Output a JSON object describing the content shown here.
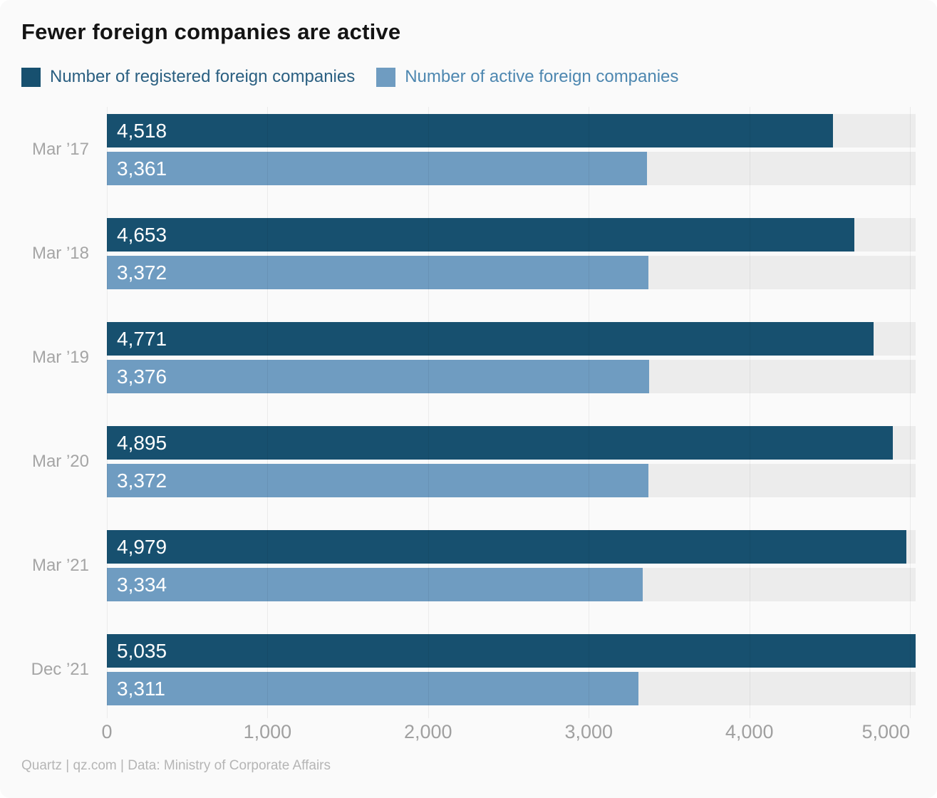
{
  "title": "Fewer foreign companies are active",
  "legend": {
    "items": [
      {
        "label": "Number of registered foreign companies",
        "swatch_color": "#17506f",
        "text_color": "#2a5f81"
      },
      {
        "label": "Number of active foreign companies",
        "swatch_color": "#6f9cc1",
        "text_color": "#4d87b0"
      }
    ]
  },
  "footer": "Quartz | qz.com | Data: Ministry of Corporate Affairs",
  "chart_data": {
    "type": "bar",
    "orientation": "horizontal",
    "title": "Fewer foreign companies are active",
    "categories": [
      "Mar ’17",
      "Mar ’18",
      "Mar ’19",
      "Mar ’20",
      "Mar ’21",
      "Dec ’21"
    ],
    "series": [
      {
        "name": "Number of registered foreign companies",
        "color": "#17506f",
        "values": [
          4518,
          4653,
          4771,
          4895,
          4979,
          5035
        ],
        "labels": [
          "4,518",
          "4,653",
          "4,771",
          "4,895",
          "4,979",
          "5,035"
        ]
      },
      {
        "name": "Number of active foreign companies",
        "color": "#6f9cc1",
        "values": [
          3361,
          3372,
          3376,
          3372,
          3334,
          3311
        ],
        "labels": [
          "3,361",
          "3,372",
          "3,376",
          "3,372",
          "3,334",
          "3,311"
        ]
      }
    ],
    "xlim": [
      0,
      5035
    ],
    "xticks": [
      {
        "value": 0,
        "label": "0"
      },
      {
        "value": 1000,
        "label": "1,000"
      },
      {
        "value": 2000,
        "label": "2,000"
      },
      {
        "value": 3000,
        "label": "3,000"
      },
      {
        "value": 4000,
        "label": "4,000"
      },
      {
        "value": 5000,
        "label": "5,000"
      }
    ],
    "grid": true,
    "track_color": "#ececec",
    "legend_position": "top",
    "source": "Quartz | qz.com | Data: Ministry of Corporate Affairs"
  }
}
